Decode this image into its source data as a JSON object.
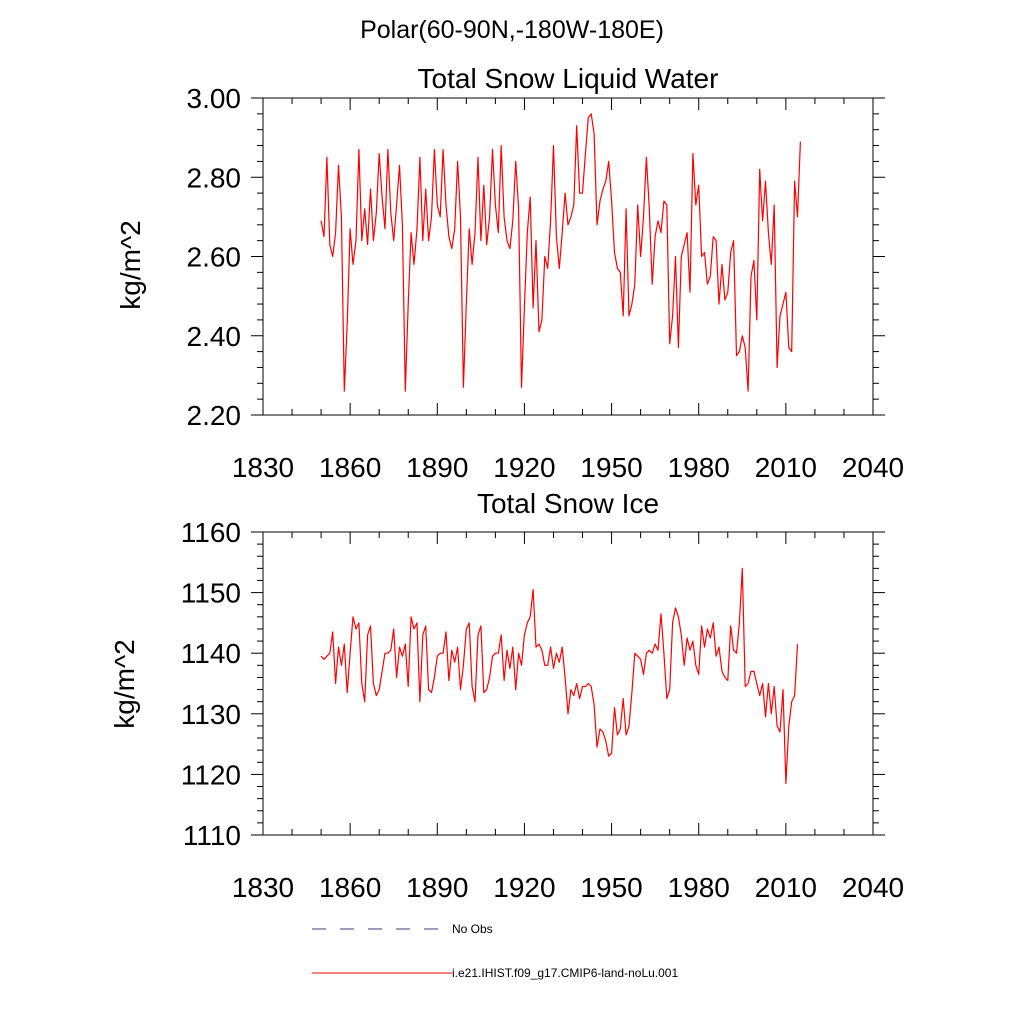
{
  "suptitle": "Polar(60-90N,-180W-180E)",
  "legend": {
    "items": [
      {
        "label": "No Obs",
        "color": "#3d3d7a",
        "dashed": true
      },
      {
        "label": "i.e21.IHIST.f09_g17.CMIP6-land-noLu.001",
        "color": "#ff0000",
        "dashed": false
      }
    ]
  },
  "chart_data": [
    {
      "type": "line",
      "title": "Total Snow Liquid Water",
      "ylabel": "kg/m^2",
      "xlabel": "",
      "xlim": [
        1830,
        2040
      ],
      "ylim": [
        2.2,
        3.0
      ],
      "xticks": [
        1830,
        1860,
        1890,
        1920,
        1950,
        1980,
        2010,
        2040
      ],
      "yticks": [
        "2.20",
        "2.40",
        "2.60",
        "2.80",
        "3.00"
      ],
      "series": [
        {
          "color": "#ff0000",
          "x_start": 1850,
          "x_step": 1,
          "values": [
            2.69,
            2.65,
            2.85,
            2.63,
            2.6,
            2.66,
            2.83,
            2.7,
            2.26,
            2.43,
            2.67,
            2.58,
            2.64,
            2.87,
            2.64,
            2.72,
            2.63,
            2.77,
            2.64,
            2.71,
            2.86,
            2.75,
            2.67,
            2.87,
            2.71,
            2.64,
            2.73,
            2.83,
            2.68,
            2.26,
            2.48,
            2.66,
            2.58,
            2.67,
            2.85,
            2.64,
            2.77,
            2.64,
            2.7,
            2.87,
            2.73,
            2.7,
            2.87,
            2.73,
            2.65,
            2.62,
            2.67,
            2.84,
            2.7,
            2.27,
            2.48,
            2.67,
            2.58,
            2.66,
            2.85,
            2.64,
            2.78,
            2.63,
            2.7,
            2.87,
            2.73,
            2.66,
            2.88,
            2.7,
            2.64,
            2.62,
            2.69,
            2.84,
            2.72,
            2.27,
            2.47,
            2.66,
            2.75,
            2.47,
            2.64,
            2.41,
            2.44,
            2.6,
            2.57,
            2.69,
            2.88,
            2.65,
            2.57,
            2.66,
            2.76,
            2.68,
            2.7,
            2.73,
            2.93,
            2.76,
            2.76,
            2.86,
            2.95,
            2.96,
            2.91,
            2.68,
            2.74,
            2.77,
            2.79,
            2.84,
            2.74,
            2.61,
            2.57,
            2.56,
            2.45,
            2.72,
            2.45,
            2.48,
            2.53,
            2.73,
            2.6,
            2.7,
            2.85,
            2.72,
            2.53,
            2.65,
            2.69,
            2.66,
            2.74,
            2.73,
            2.38,
            2.45,
            2.6,
            2.37,
            2.6,
            2.63,
            2.66,
            2.51,
            2.86,
            2.73,
            2.78,
            2.6,
            2.61,
            2.53,
            2.55,
            2.65,
            2.64,
            2.48,
            2.58,
            2.49,
            2.51,
            2.61,
            2.64,
            2.35,
            2.36,
            2.4,
            2.37,
            2.26,
            2.55,
            2.59,
            2.44,
            2.82,
            2.69,
            2.79,
            2.66,
            2.58,
            2.73,
            2.32,
            2.45,
            2.48,
            2.51,
            2.37,
            2.36,
            2.79,
            2.7,
            2.89
          ]
        }
      ]
    },
    {
      "type": "line",
      "title": "Total Snow Ice",
      "ylabel": "kg/m^2",
      "xlabel": "",
      "xlim": [
        1830,
        2040
      ],
      "ylim": [
        1110,
        1160
      ],
      "xticks": [
        1830,
        1860,
        1890,
        1920,
        1950,
        1980,
        2010,
        2040
      ],
      "yticks": [
        "1110",
        "1120",
        "1130",
        "1140",
        "1150",
        "1160"
      ],
      "series": [
        {
          "color": "#ff0000",
          "x_start": 1850,
          "x_step": 1,
          "values": [
            1139.5,
            1139,
            1139.5,
            1140,
            1143.5,
            1135,
            1141,
            1138,
            1141.5,
            1133.5,
            1140,
            1146,
            1144,
            1145,
            1135,
            1132,
            1143,
            1144.5,
            1135,
            1133,
            1134,
            1137,
            1140,
            1140,
            1140.5,
            1144,
            1136,
            1141,
            1139.5,
            1141.5,
            1134.5,
            1146,
            1144,
            1145,
            1132,
            1143,
            1144.5,
            1134,
            1133.5,
            1136,
            1139.5,
            1140,
            1140,
            1143.5,
            1135.5,
            1140.5,
            1138.5,
            1141,
            1134,
            1138,
            1144,
            1145,
            1134.5,
            1132,
            1143,
            1144.5,
            1133.5,
            1134,
            1136,
            1139.5,
            1140,
            1140,
            1143,
            1135.5,
            1140.5,
            1137.5,
            1141,
            1134,
            1140,
            1138,
            1143,
            1145,
            1146,
            1150.5,
            1141,
            1141.5,
            1140.5,
            1138,
            1138,
            1141,
            1137.5,
            1140,
            1138.5,
            1141,
            1136,
            1130,
            1134,
            1133,
            1135,
            1132.5,
            1134.5,
            1134.5,
            1135,
            1134.5,
            1131.5,
            1124.5,
            1127.5,
            1127,
            1125.5,
            1123,
            1123.5,
            1131,
            1126.5,
            1127.5,
            1132.5,
            1126.5,
            1128,
            1133.5,
            1140,
            1139.5,
            1139,
            1136.5,
            1140,
            1140.5,
            1140,
            1141.5,
            1140.5,
            1146.5,
            1140,
            1132.5,
            1134,
            1145,
            1147.5,
            1146,
            1143,
            1138,
            1142.5,
            1140.5,
            1142,
            1138,
            1136.5,
            1144.5,
            1141,
            1144,
            1142.5,
            1145,
            1139.5,
            1141,
            1137,
            1136,
            1135.5,
            1144.5,
            1140.5,
            1140,
            1145,
            1154,
            1134.5,
            1135,
            1137,
            1137,
            1135,
            1133,
            1135,
            1129.5,
            1135,
            1130,
            1134.5,
            1128,
            1127,
            1134,
            1118.5,
            1128,
            1132,
            1133,
            1141.5
          ]
        }
      ]
    }
  ]
}
